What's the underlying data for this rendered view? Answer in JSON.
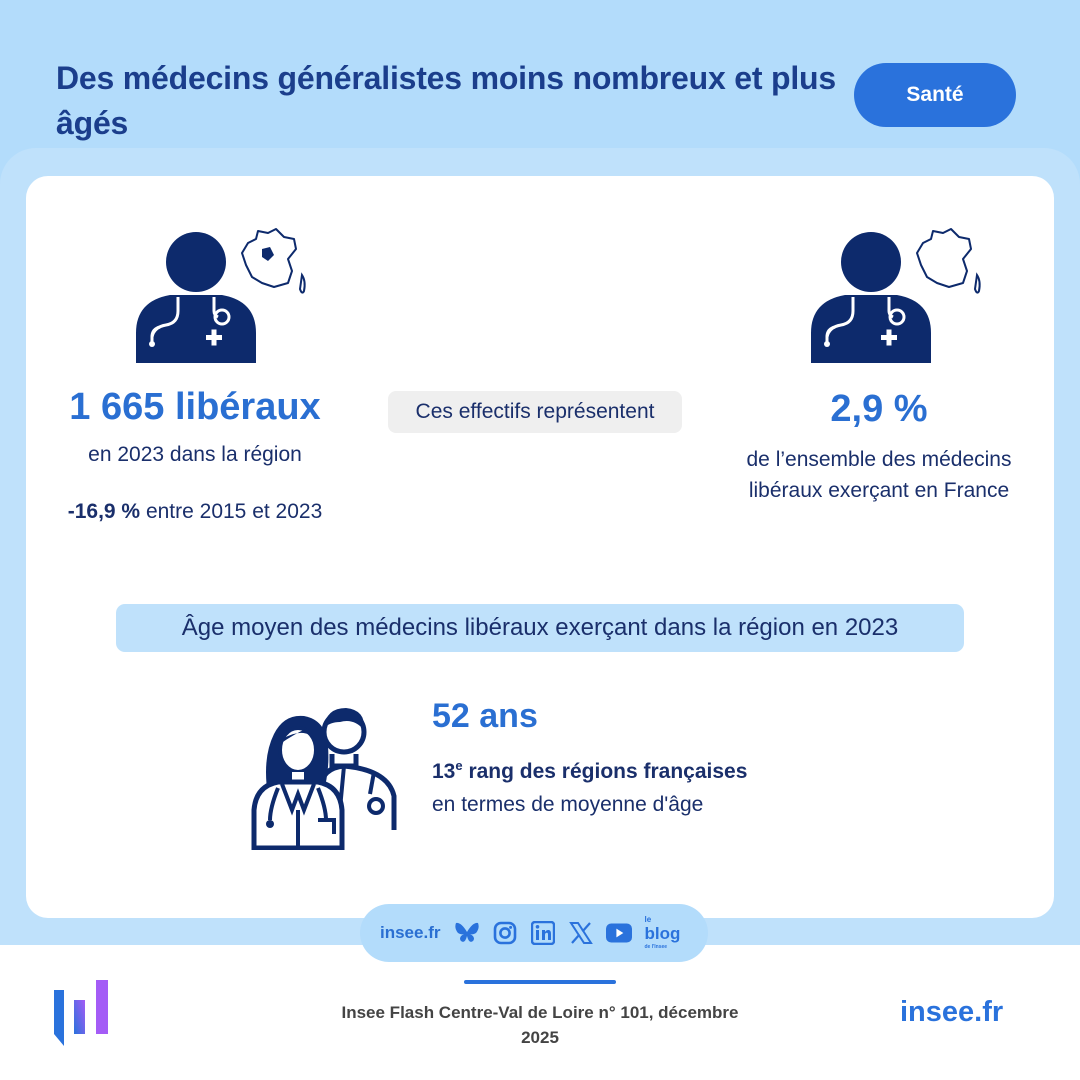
{
  "header": {
    "title": "Des médecins généralistes moins nombreux et plus âgés",
    "theme": "Santé"
  },
  "left_stat": {
    "value": "1 665 libéraux",
    "subtitle": "en 2023 dans la région",
    "trend_value": "-16,9 %",
    "trend_text": "entre 2015 et 2023",
    "icon": "doctor-with-region-map-icon"
  },
  "middle": {
    "label": "Ces effectifs représentent"
  },
  "right_stat": {
    "value": "2,9 %",
    "subtitle": "de l’ensemble des médecins libéraux exerçant en France",
    "icon": "doctor-with-france-map-icon"
  },
  "age": {
    "banner": "Âge moyen des médecins libéraux exerçant dans la région en 2023",
    "value": "52 ans",
    "rank_number": "13",
    "rank_suffix": "e",
    "rank_text": "rang des régions françaises",
    "rank_sub": "en termes de moyenne d'âge",
    "icon": "two-doctors-icon"
  },
  "social": {
    "site": "insee.fr",
    "icons": [
      "bluesky-icon",
      "instagram-icon",
      "linkedin-icon",
      "x-icon",
      "youtube-icon",
      "blog-icon"
    ],
    "blog_label": "blog",
    "blog_prefix": "le",
    "blog_tagline": "de l'Insee"
  },
  "footer": {
    "source": "Insee Flash Centre-Val de Loire n° 101, décembre 2025",
    "site": "insee.fr"
  },
  "colors": {
    "background_light_blue": "#b3dcfb",
    "accent_blue": "#2a72dc",
    "navy": "#1a2f6b",
    "logo_purple": "#8a5cf6"
  }
}
